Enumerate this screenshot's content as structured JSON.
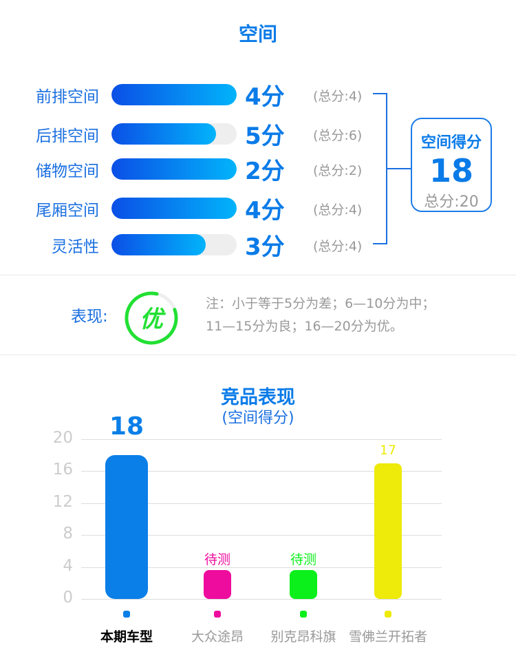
{
  "section_title": "空间",
  "items": [
    {
      "label": "前排空间",
      "score": "4分",
      "total": "(总分:4)",
      "fill": 1.0
    },
    {
      "label": "后排空间",
      "score": "5分",
      "total": "(总分:6)",
      "fill": 0.8333
    },
    {
      "label": "储物空间",
      "score": "2分",
      "total": "(总分:2)",
      "fill": 1.0
    },
    {
      "label": "尾厢空间",
      "score": "4分",
      "total": "(总分:4)",
      "fill": 1.0
    },
    {
      "label": "灵活性",
      "score": "3分",
      "total": "(总分:4)",
      "fill": 0.75
    }
  ],
  "summary": {
    "title": "空间得分",
    "score": "18",
    "total": "总分:20"
  },
  "performance": {
    "label": "表现:",
    "grade": "优",
    "note_line1": "注：小于等于5分为差；6—10分为中；",
    "note_line2": "11—15分为良；16—20分为优。",
    "ring_color": "#22e033"
  },
  "chart_data": {
    "type": "bar",
    "title": "竞品表现",
    "subtitle": "(空间得分)",
    "categories": [
      "本期车型",
      "大众途昂",
      "别克昂科旗",
      "雪佛兰开拓者"
    ],
    "values": [
      18,
      null,
      null,
      17
    ],
    "data_labels": [
      "18",
      "待测",
      "待测",
      "17"
    ],
    "colors": [
      "#0a7fe8",
      "#ee0c9e",
      "#0bef1b",
      "#eeea0a"
    ],
    "yticks": [
      20,
      16,
      12,
      8,
      4,
      0
    ],
    "ylim": [
      0,
      20
    ],
    "grid": true
  }
}
